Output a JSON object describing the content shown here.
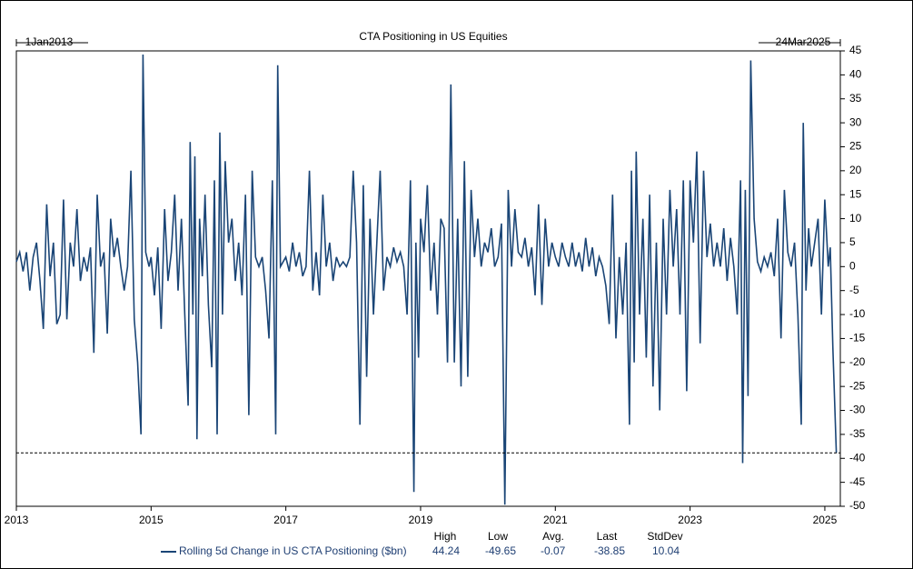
{
  "chart_data": {
    "type": "line",
    "title": "CTA Positioning in US Equities",
    "start_label": "1Jan2013",
    "end_label": "24Mar2025",
    "xlim": [
      2013,
      2025.23
    ],
    "xticks": [
      2013,
      2015,
      2017,
      2019,
      2021,
      2023,
      2025
    ],
    "ylim": [
      -50,
      45
    ],
    "yticks": [
      -50,
      -45,
      -40,
      -35,
      -30,
      -25,
      -20,
      -15,
      -10,
      -5,
      0,
      5,
      10,
      15,
      20,
      25,
      30,
      35,
      40,
      45
    ],
    "reference_line": {
      "style": "dashed"
    },
    "stats": {
      "labels": [
        "High",
        "Low",
        "Avg.",
        "Last",
        "StdDev"
      ],
      "values": [
        44.24,
        -49.65,
        -0.07,
        -38.85,
        10.04
      ]
    },
    "series": [
      {
        "name": "Rolling 5d Change in US CTA Positioning ($bn)",
        "color": "#1a4576",
        "x": [
          2013.0,
          2013.05,
          2013.1,
          2013.15,
          2013.2,
          2013.25,
          2013.3,
          2013.35,
          2013.4,
          2013.45,
          2013.5,
          2013.55,
          2013.6,
          2013.65,
          2013.7,
          2013.75,
          2013.8,
          2013.85,
          2013.9,
          2013.95,
          2014.0,
          2014.05,
          2014.1,
          2014.15,
          2014.2,
          2014.25,
          2014.3,
          2014.35,
          2014.4,
          2014.45,
          2014.5,
          2014.55,
          2014.6,
          2014.65,
          2014.7,
          2014.75,
          2014.8,
          2014.85,
          2014.88,
          2014.92,
          2014.97,
          2015.0,
          2015.05,
          2015.1,
          2015.15,
          2015.2,
          2015.25,
          2015.3,
          2015.35,
          2015.4,
          2015.45,
          2015.5,
          2015.55,
          2015.58,
          2015.62,
          2015.65,
          2015.68,
          2015.72,
          2015.76,
          2015.8,
          2015.85,
          2015.9,
          2015.94,
          2015.98,
          2016.02,
          2016.06,
          2016.1,
          2016.15,
          2016.2,
          2016.25,
          2016.3,
          2016.35,
          2016.4,
          2016.45,
          2016.5,
          2016.55,
          2016.6,
          2016.65,
          2016.7,
          2016.75,
          2016.8,
          2016.85,
          2016.88,
          2016.92,
          2017.0,
          2017.05,
          2017.1,
          2017.15,
          2017.2,
          2017.25,
          2017.3,
          2017.35,
          2017.4,
          2017.45,
          2017.5,
          2017.55,
          2017.6,
          2017.65,
          2017.7,
          2017.75,
          2017.8,
          2017.85,
          2017.9,
          2017.95,
          2018.0,
          2018.05,
          2018.1,
          2018.15,
          2018.2,
          2018.25,
          2018.3,
          2018.35,
          2018.4,
          2018.45,
          2018.5,
          2018.55,
          2018.6,
          2018.65,
          2018.7,
          2018.75,
          2018.8,
          2018.85,
          2018.9,
          2018.93,
          2018.97,
          2019.0,
          2019.05,
          2019.1,
          2019.15,
          2019.2,
          2019.25,
          2019.3,
          2019.35,
          2019.4,
          2019.45,
          2019.5,
          2019.55,
          2019.6,
          2019.65,
          2019.7,
          2019.75,
          2019.8,
          2019.85,
          2019.9,
          2019.95,
          2020.0,
          2020.05,
          2020.1,
          2020.15,
          2020.2,
          2020.25,
          2020.3,
          2020.35,
          2020.4,
          2020.45,
          2020.5,
          2020.55,
          2020.6,
          2020.65,
          2020.7,
          2020.75,
          2020.8,
          2020.85,
          2020.9,
          2020.95,
          2021.0,
          2021.05,
          2021.1,
          2021.15,
          2021.2,
          2021.25,
          2021.3,
          2021.35,
          2021.4,
          2021.45,
          2021.5,
          2021.55,
          2021.6,
          2021.65,
          2021.7,
          2021.75,
          2021.8,
          2021.85,
          2021.9,
          2021.95,
          2022.0,
          2022.05,
          2022.1,
          2022.13,
          2022.17,
          2022.2,
          2022.25,
          2022.3,
          2022.35,
          2022.4,
          2022.45,
          2022.5,
          2022.55,
          2022.6,
          2022.65,
          2022.7,
          2022.75,
          2022.8,
          2022.85,
          2022.9,
          2022.95,
          2023.0,
          2023.05,
          2023.1,
          2023.15,
          2023.2,
          2023.25,
          2023.3,
          2023.35,
          2023.4,
          2023.45,
          2023.5,
          2023.55,
          2023.6,
          2023.65,
          2023.7,
          2023.75,
          2023.78,
          2023.82,
          2023.86,
          2023.9,
          2023.95,
          2024.0,
          2024.05,
          2024.1,
          2024.15,
          2024.2,
          2024.25,
          2024.3,
          2024.35,
          2024.4,
          2024.45,
          2024.5,
          2024.55,
          2024.6,
          2024.65,
          2024.68,
          2024.72,
          2024.76,
          2024.8,
          2024.85,
          2024.9,
          2024.95,
          2025.0,
          2025.05,
          2025.08,
          2025.12,
          2025.17
        ],
        "values": [
          1,
          3,
          -1,
          3,
          -5,
          2,
          5,
          -3,
          -13,
          13,
          -2,
          5,
          -12,
          -10,
          14,
          -11,
          5,
          0,
          12,
          -3,
          2,
          -1,
          4,
          -18,
          15,
          0,
          3,
          -14,
          10,
          2,
          6,
          0,
          -5,
          0,
          20,
          -11,
          -20,
          -35,
          44.24,
          3,
          0,
          2,
          -6,
          4,
          -13,
          12,
          -3,
          3,
          15,
          -5,
          10,
          -10,
          -29,
          26,
          -10,
          23,
          -36,
          10,
          -2,
          15,
          -8,
          -21,
          18,
          -35,
          28,
          -10,
          22,
          5,
          10,
          -3,
          5,
          -6,
          15,
          -31,
          20,
          2,
          0,
          2,
          -5,
          -15,
          18,
          -35,
          42,
          0,
          2,
          -1,
          5,
          0,
          3,
          -2,
          0,
          20,
          -5,
          3,
          -6,
          15,
          0,
          5,
          -3,
          2,
          0,
          1,
          0,
          2,
          20,
          5,
          -33,
          17,
          -23,
          10,
          -10,
          5,
          20,
          -5,
          2,
          0,
          4,
          1,
          3,
          0,
          -10,
          18,
          -47,
          5,
          -19,
          10,
          3,
          17,
          -5,
          5,
          -10,
          10,
          8,
          -20,
          38,
          -20,
          10,
          -25,
          22,
          -23,
          16,
          2,
          10,
          0,
          5,
          3,
          8,
          0,
          2,
          9,
          -49.65,
          16,
          0,
          12,
          3,
          2,
          6,
          0,
          4,
          -6,
          13,
          -8,
          10,
          0,
          5,
          2,
          0,
          5,
          2,
          0,
          5,
          0,
          3,
          -1,
          6,
          0,
          4,
          -2,
          2,
          0,
          -4,
          -12,
          15,
          -15,
          2,
          -10,
          5,
          -33,
          20,
          -20,
          24,
          -10,
          10,
          -19,
          15,
          -25,
          5,
          -30,
          10,
          -10,
          16,
          0,
          12,
          -10,
          18,
          -26,
          18,
          5,
          24,
          -16,
          20,
          2,
          9,
          0,
          5,
          0,
          8,
          -3,
          6,
          0,
          -10,
          18,
          -41,
          16,
          -27,
          43,
          10,
          1,
          -1,
          2,
          0,
          3,
          -2,
          10,
          -15,
          16,
          3,
          0,
          5,
          -10,
          -33,
          30,
          -5,
          8,
          0,
          5,
          10,
          -10,
          14,
          0,
          4,
          -17,
          -38.85
        ]
      }
    ]
  }
}
